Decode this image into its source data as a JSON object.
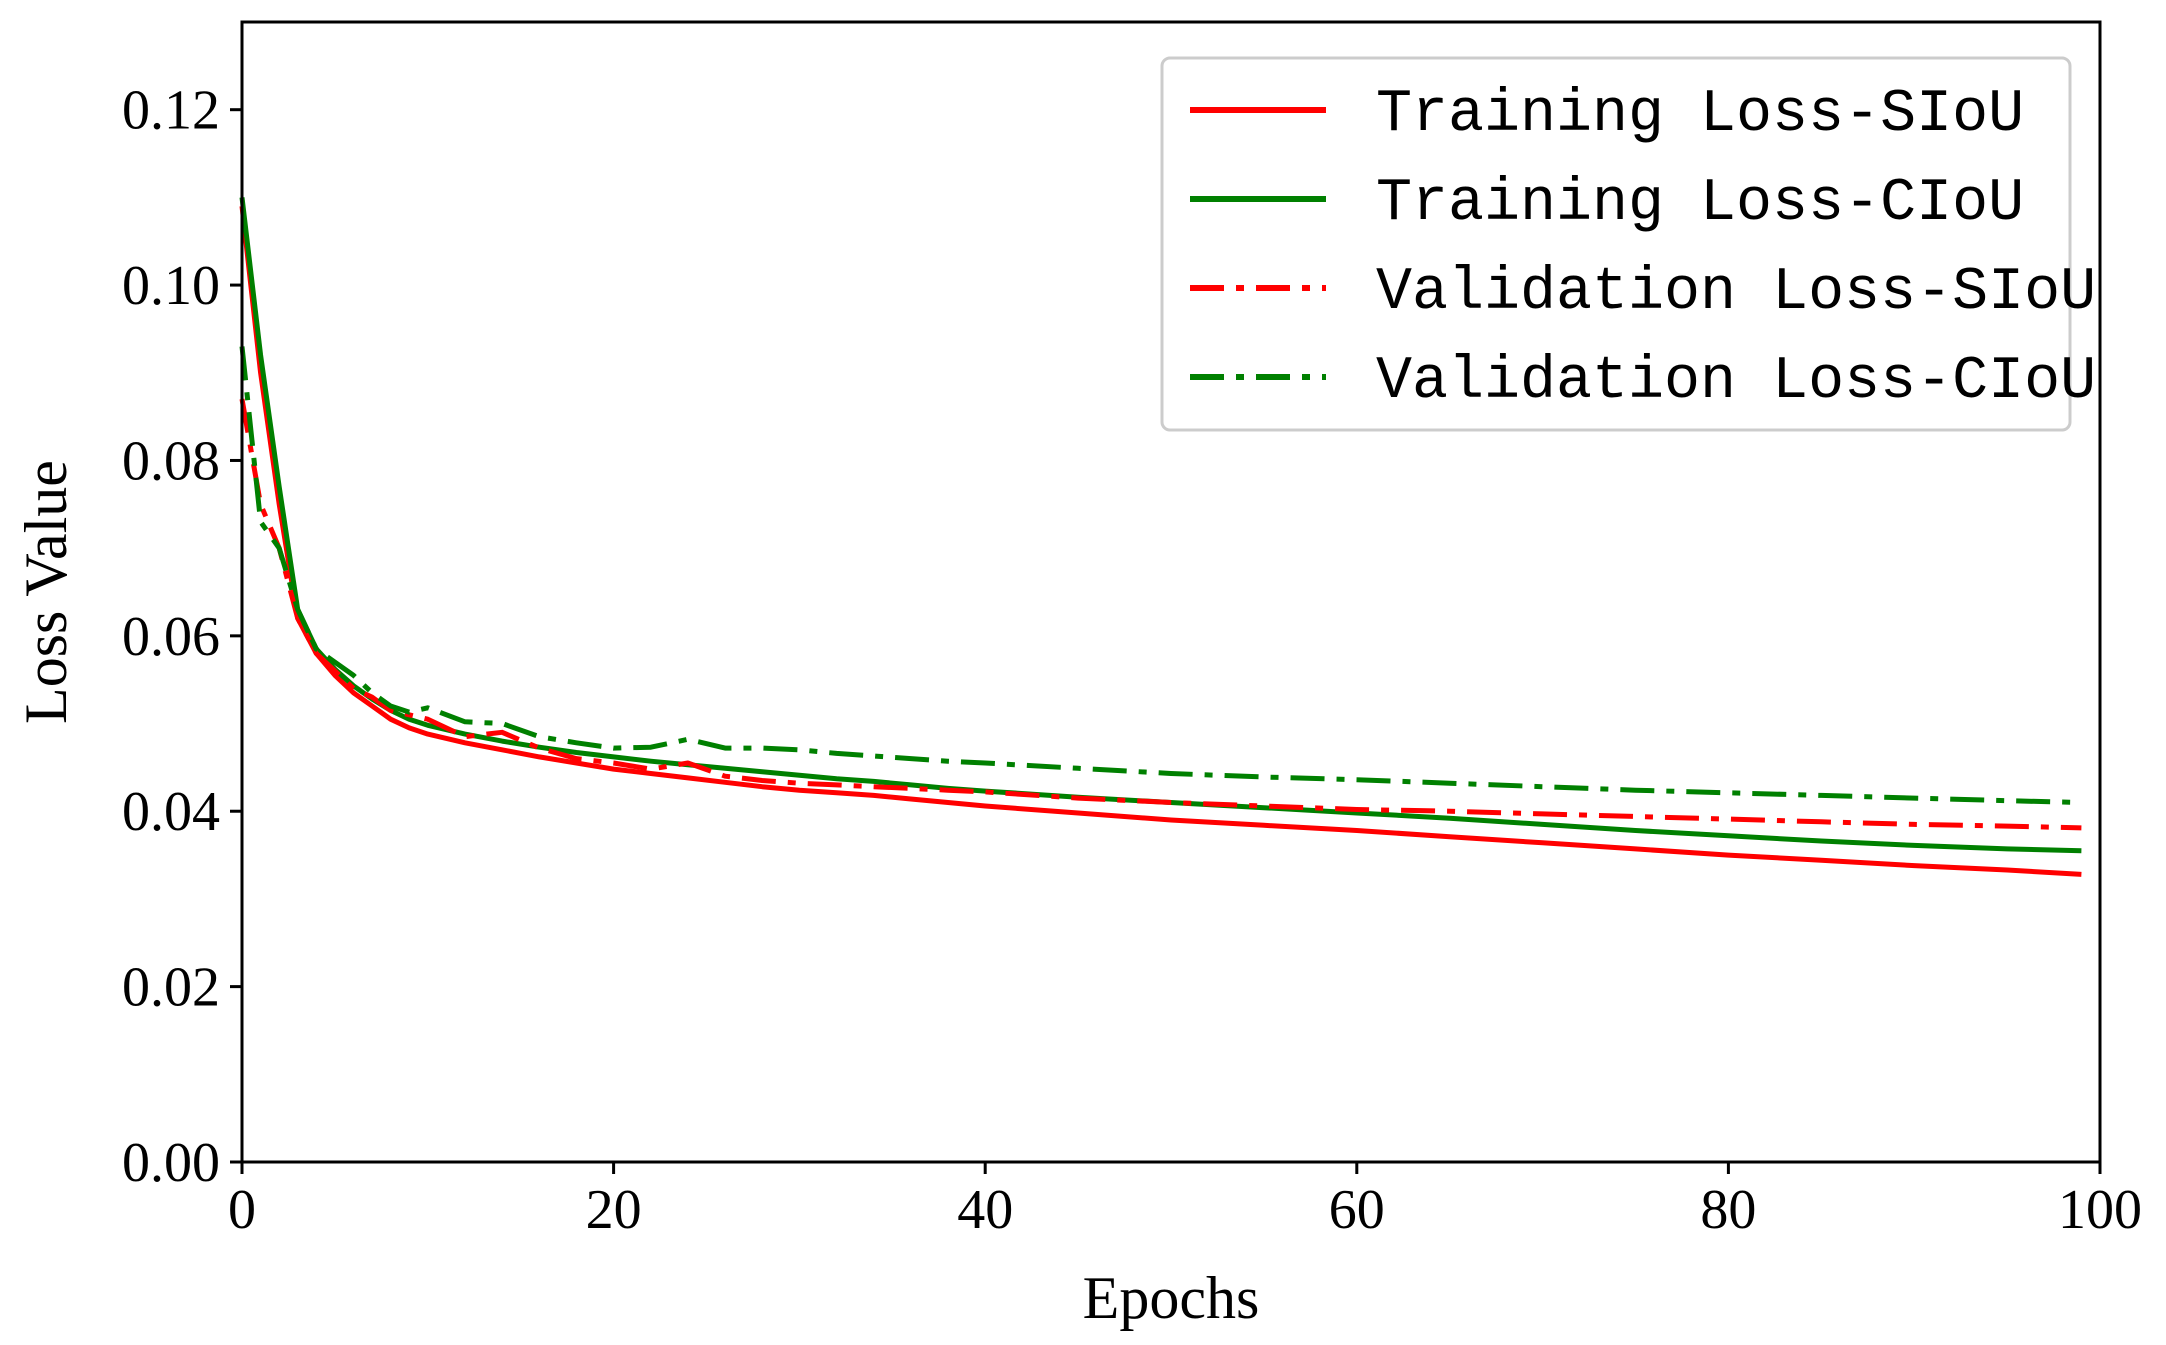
{
  "chart_data": {
    "type": "line",
    "title": "",
    "xlabel": "Epochs",
    "ylabel": "Loss Value",
    "xlim": [
      0,
      100
    ],
    "ylim": [
      0,
      0.13
    ],
    "xticks": [
      0,
      20,
      40,
      60,
      80,
      100
    ],
    "xtick_labels": [
      "0",
      "20",
      "40",
      "60",
      "80",
      "100"
    ],
    "yticks": [
      0,
      0.02,
      0.04,
      0.06,
      0.08,
      0.1,
      0.12
    ],
    "ytick_labels": [
      "0.00",
      "0.02",
      "0.04",
      "0.06",
      "0.08",
      "0.10",
      "0.12"
    ],
    "grid": false,
    "legend_position": "top-right",
    "series": [
      {
        "name": "Training Loss-SIoU",
        "color": "#ff0000",
        "style": "solid",
        "x": [
          0,
          1,
          2,
          3,
          4,
          5,
          6,
          7,
          8,
          9,
          10,
          12,
          14,
          16,
          18,
          20,
          22,
          24,
          26,
          28,
          30,
          32,
          34,
          36,
          38,
          40,
          45,
          50,
          55,
          60,
          65,
          70,
          75,
          80,
          85,
          90,
          95,
          99
        ],
        "y": [
          0.109,
          0.09,
          0.075,
          0.062,
          0.058,
          0.0555,
          0.0535,
          0.052,
          0.0505,
          0.0495,
          0.0488,
          0.0478,
          0.047,
          0.0462,
          0.0455,
          0.0448,
          0.0443,
          0.0438,
          0.0433,
          0.0428,
          0.0424,
          0.0421,
          0.0418,
          0.0414,
          0.041,
          0.0406,
          0.0398,
          0.039,
          0.0384,
          0.0378,
          0.0371,
          0.0364,
          0.0357,
          0.035,
          0.0344,
          0.0338,
          0.0333,
          0.0328
        ]
      },
      {
        "name": "Training Loss-CIoU",
        "color": "#008000",
        "style": "solid",
        "x": [
          0,
          1,
          2,
          3,
          4,
          5,
          6,
          7,
          8,
          9,
          10,
          12,
          14,
          16,
          18,
          20,
          22,
          24,
          26,
          28,
          30,
          32,
          34,
          36,
          38,
          40,
          45,
          50,
          55,
          60,
          65,
          70,
          75,
          80,
          85,
          90,
          95,
          99
        ],
        "y": [
          0.11,
          0.092,
          0.077,
          0.063,
          0.0585,
          0.0562,
          0.0543,
          0.0528,
          0.0515,
          0.0505,
          0.0498,
          0.0488,
          0.048,
          0.0473,
          0.0467,
          0.0462,
          0.0457,
          0.0453,
          0.0449,
          0.0445,
          0.0441,
          0.0437,
          0.0434,
          0.043,
          0.0426,
          0.0423,
          0.0416,
          0.041,
          0.0404,
          0.0398,
          0.0392,
          0.0385,
          0.0378,
          0.0372,
          0.0366,
          0.0361,
          0.0357,
          0.0355
        ]
      },
      {
        "name": "Validation Loss-SIoU",
        "color": "#ff0000",
        "style": "dashdot",
        "x": [
          0,
          1,
          2,
          3,
          4,
          5,
          6,
          7,
          8,
          9,
          10,
          12,
          14,
          16,
          18,
          20,
          22,
          24,
          26,
          28,
          30,
          32,
          34,
          36,
          38,
          40,
          45,
          50,
          55,
          60,
          65,
          70,
          75,
          80,
          85,
          90,
          95,
          99
        ],
        "y": [
          0.087,
          0.075,
          0.07,
          0.062,
          0.058,
          0.056,
          0.054,
          0.053,
          0.0515,
          0.051,
          0.0505,
          0.0485,
          0.049,
          0.0472,
          0.046,
          0.0455,
          0.0448,
          0.0455,
          0.044,
          0.0435,
          0.0432,
          0.043,
          0.0428,
          0.0426,
          0.0424,
          0.0422,
          0.0415,
          0.041,
          0.0406,
          0.0402,
          0.04,
          0.0397,
          0.0394,
          0.0391,
          0.0388,
          0.0385,
          0.0383,
          0.0381
        ]
      },
      {
        "name": "Validation Loss-CIoU",
        "color": "#008000",
        "style": "dashdot",
        "x": [
          0,
          1,
          2,
          3,
          4,
          5,
          6,
          7,
          8,
          9,
          10,
          12,
          14,
          16,
          18,
          20,
          22,
          24,
          26,
          28,
          30,
          32,
          34,
          36,
          38,
          40,
          45,
          50,
          55,
          60,
          65,
          70,
          75,
          80,
          85,
          90,
          95,
          99
        ],
        "y": [
          0.093,
          0.073,
          0.07,
          0.063,
          0.0585,
          0.057,
          0.0555,
          0.0535,
          0.052,
          0.0513,
          0.0518,
          0.0502,
          0.05,
          0.0485,
          0.0478,
          0.0472,
          0.0473,
          0.0482,
          0.0472,
          0.0472,
          0.047,
          0.0466,
          0.0463,
          0.046,
          0.0457,
          0.0455,
          0.0449,
          0.0443,
          0.0439,
          0.0436,
          0.0432,
          0.0428,
          0.0424,
          0.0421,
          0.0418,
          0.0415,
          0.0412,
          0.041
        ]
      }
    ]
  }
}
